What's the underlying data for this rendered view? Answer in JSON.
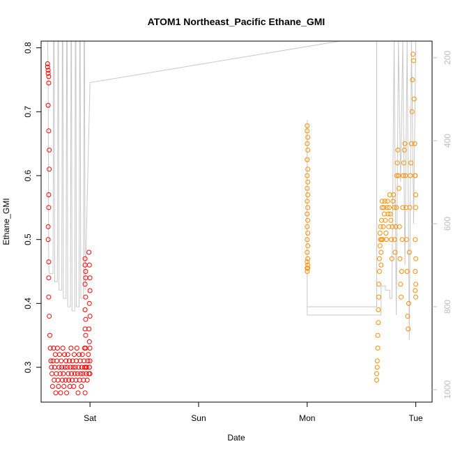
{
  "chart_data": {
    "type": "scatter",
    "title": "ATOM1 Northeast_Pacific Ethane_GMI",
    "xlabel": "Date",
    "ylabel": "Ethane_GMI",
    "x_unit": "days",
    "x_ticks": [
      {
        "x": 1.0,
        "label": "Sat"
      },
      {
        "x": 2.0,
        "label": "Sun"
      },
      {
        "x": 3.0,
        "label": "Mon"
      },
      {
        "x": 4.0,
        "label": "Tue"
      }
    ],
    "xlim": [
      0.55,
      4.15
    ],
    "ylim": [
      0.2455,
      0.8105
    ],
    "y_ticks": [
      0.3,
      0.4,
      0.5,
      0.6,
      0.7,
      0.8
    ],
    "right_axis": {
      "ticks": [
        200,
        400,
        600,
        800,
        1000
      ],
      "lim": [
        1030,
        160
      ],
      "color": "#bdbdbd"
    },
    "grid": false,
    "colors": {
      "series_red": "#ff0000",
      "series_orange": "#ff8c00",
      "pressure_line": "#c8c8c8"
    },
    "series": [
      {
        "color": "#ff0000",
        "x": [
          0.61,
          0.61,
          0.615,
          0.615,
          0.62,
          0.62,
          0.615,
          0.62,
          0.625,
          0.625,
          0.62,
          0.62,
          0.615,
          0.615,
          0.62,
          0.62,
          0.62,
          0.625,
          0.63,
          0.635,
          0.64,
          0.645,
          0.65,
          0.655,
          0.66,
          0.665,
          0.67,
          0.675,
          0.68,
          0.685,
          0.69,
          0.695,
          0.7,
          0.705,
          0.71,
          0.715,
          0.72,
          0.725,
          0.73,
          0.735,
          0.74,
          0.745,
          0.75,
          0.755,
          0.76,
          0.765,
          0.77,
          0.775,
          0.78,
          0.785,
          0.79,
          0.795,
          0.8,
          0.805,
          0.81,
          0.815,
          0.82,
          0.825,
          0.83,
          0.835,
          0.84,
          0.845,
          0.85,
          0.855,
          0.86,
          0.865,
          0.87,
          0.875,
          0.88,
          0.885,
          0.89,
          0.895,
          0.9,
          0.905,
          0.91,
          0.915,
          0.92,
          0.925,
          0.93,
          0.935,
          0.94,
          0.945,
          0.95,
          0.955,
          0.96,
          0.965,
          0.97,
          0.975,
          0.98,
          0.985,
          0.99,
          0.995,
          0.955,
          0.955,
          0.96,
          0.96,
          0.955,
          0.96,
          0.955,
          0.96,
          0.955,
          0.96,
          0.95,
          0.96,
          0.99,
          0.995,
          1.0,
          1.0,
          0.995,
          1.0,
          0.99,
          0.995,
          1.0,
          1.0,
          0.995,
          1.0
        ],
        "y": [
          0.775,
          0.77,
          0.765,
          0.76,
          0.755,
          0.745,
          0.71,
          0.67,
          0.64,
          0.61,
          0.57,
          0.55,
          0.52,
          0.5,
          0.465,
          0.44,
          0.41,
          0.38,
          0.35,
          0.33,
          0.31,
          0.3,
          0.29,
          0.27,
          0.31,
          0.33,
          0.28,
          0.3,
          0.32,
          0.26,
          0.29,
          0.31,
          0.33,
          0.28,
          0.27,
          0.3,
          0.32,
          0.29,
          0.26,
          0.31,
          0.3,
          0.28,
          0.33,
          0.29,
          0.27,
          0.32,
          0.3,
          0.28,
          0.31,
          0.26,
          0.3,
          0.32,
          0.29,
          0.28,
          0.31,
          0.27,
          0.3,
          0.33,
          0.29,
          0.28,
          0.31,
          0.3,
          0.27,
          0.32,
          0.29,
          0.3,
          0.28,
          0.31,
          0.33,
          0.29,
          0.26,
          0.3,
          0.32,
          0.28,
          0.31,
          0.29,
          0.27,
          0.3,
          0.32,
          0.29,
          0.28,
          0.31,
          0.3,
          0.26,
          0.33,
          0.29,
          0.3,
          0.28,
          0.31,
          0.32,
          0.29,
          0.3,
          0.47,
          0.46,
          0.45,
          0.44,
          0.43,
          0.41,
          0.39,
          0.375,
          0.36,
          0.35,
          0.33,
          0.3,
          0.48,
          0.46,
          0.44,
          0.42,
          0.4,
          0.38,
          0.36,
          0.34,
          0.33,
          0.31,
          0.3,
          0.29
        ]
      },
      {
        "color": "#ff8c00",
        "x": [
          3.0,
          3.0,
          3.005,
          3.0,
          3.005,
          3.0,
          3.005,
          3.0,
          3.005,
          3.0,
          3.005,
          3.0,
          3.005,
          3.0,
          3.005,
          3.0,
          3.005,
          3.0,
          3.005,
          3.0,
          3.005,
          3.0,
          3.005,
          3.0,
          3.005,
          3.0,
          3.64,
          3.64,
          3.645,
          3.645,
          3.65,
          3.65,
          3.655,
          3.655,
          3.66,
          3.66,
          3.665,
          3.665,
          3.67,
          3.67,
          3.675,
          3.675,
          3.68,
          3.68,
          3.685,
          3.685,
          3.69,
          3.69,
          3.695,
          3.7,
          3.705,
          3.71,
          3.715,
          3.72,
          3.725,
          3.73,
          3.735,
          3.74,
          3.745,
          3.75,
          3.755,
          3.76,
          3.765,
          3.77,
          3.775,
          3.78,
          3.785,
          3.79,
          3.795,
          3.8,
          3.805,
          3.81,
          3.815,
          3.82,
          3.825,
          3.83,
          3.835,
          3.84,
          3.845,
          3.85,
          3.855,
          3.86,
          3.865,
          3.87,
          3.875,
          3.88,
          3.885,
          3.89,
          3.895,
          3.9,
          3.905,
          3.91,
          3.915,
          3.92,
          3.925,
          3.93,
          3.935,
          3.94,
          3.945,
          3.95,
          3.955,
          3.96,
          3.965,
          3.97,
          3.975,
          3.98,
          3.985,
          3.99,
          3.995,
          4.0,
          3.995,
          4.0,
          3.995,
          4.0,
          3.995,
          4.0,
          3.995,
          4.0
        ],
        "y": [
          0.678,
          0.67,
          0.66,
          0.65,
          0.64,
          0.625,
          0.61,
          0.6,
          0.59,
          0.58,
          0.57,
          0.56,
          0.55,
          0.54,
          0.53,
          0.52,
          0.51,
          0.5,
          0.49,
          0.48,
          0.47,
          0.465,
          0.46,
          0.455,
          0.455,
          0.45,
          0.28,
          0.29,
          0.3,
          0.31,
          0.33,
          0.35,
          0.37,
          0.39,
          0.41,
          0.43,
          0.45,
          0.47,
          0.49,
          0.51,
          0.52,
          0.5,
          0.48,
          0.46,
          0.5,
          0.53,
          0.55,
          0.56,
          0.5,
          0.52,
          0.55,
          0.54,
          0.56,
          0.53,
          0.51,
          0.5,
          0.55,
          0.56,
          0.54,
          0.52,
          0.55,
          0.57,
          0.54,
          0.53,
          0.5,
          0.47,
          0.52,
          0.56,
          0.57,
          0.55,
          0.5,
          0.48,
          0.52,
          0.55,
          0.6,
          0.62,
          0.64,
          0.6,
          0.58,
          0.52,
          0.47,
          0.43,
          0.41,
          0.45,
          0.5,
          0.55,
          0.6,
          0.62,
          0.64,
          0.65,
          0.6,
          0.55,
          0.5,
          0.45,
          0.38,
          0.36,
          0.4,
          0.48,
          0.55,
          0.6,
          0.62,
          0.65,
          0.7,
          0.75,
          0.79,
          0.78,
          0.72,
          0.65,
          0.6,
          0.55,
          0.5,
          0.47,
          0.45,
          0.43,
          0.42,
          0.41,
          0.6,
          0.57
        ]
      }
    ],
    "line_series": {
      "color": "#c8c8c8",
      "x": [
        0.61,
        0.615,
        0.62,
        0.625,
        0.66,
        0.665,
        0.67,
        0.675,
        0.7,
        0.705,
        0.71,
        0.715,
        0.74,
        0.745,
        0.75,
        0.755,
        0.78,
        0.785,
        0.79,
        0.795,
        0.82,
        0.825,
        0.83,
        0.835,
        0.86,
        0.865,
        0.87,
        0.875,
        0.9,
        0.905,
        0.91,
        0.915,
        0.94,
        0.945,
        0.95,
        0.955,
        1.0,
        3.3,
        3.6,
        3.64,
        3.64,
        3.0,
        3.0,
        3.0,
        3.68,
        3.68,
        3.72,
        3.72,
        3.76,
        3.76,
        3.78,
        3.8,
        3.8,
        3.82,
        3.82,
        3.84,
        3.84,
        3.86,
        3.86,
        3.88,
        3.88,
        3.9,
        3.9,
        3.92,
        3.92,
        3.94,
        3.94,
        3.96,
        3.96,
        3.98,
        3.98,
        4.0
      ],
      "y": [
        160,
        230,
        700,
        720,
        720,
        160,
        160,
        740,
        740,
        160,
        160,
        760,
        760,
        160,
        160,
        780,
        780,
        160,
        160,
        800,
        800,
        160,
        160,
        810,
        810,
        160,
        160,
        800,
        800,
        160,
        160,
        780,
        780,
        160,
        160,
        760,
        260,
        160,
        160,
        160,
        800,
        800,
        350,
        820,
        820,
        750,
        750,
        760,
        760,
        780,
        780,
        160,
        160,
        820,
        820,
        160,
        160,
        500,
        500,
        160,
        160,
        700,
        700,
        160,
        160,
        880,
        880,
        160,
        160,
        600,
        600,
        160
      ]
    }
  }
}
